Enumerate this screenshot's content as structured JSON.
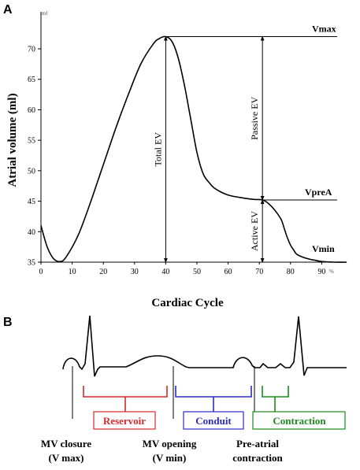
{
  "panel_a": {
    "letter": "A",
    "x_unit": "%",
    "y_unit": "ml",
    "annotations": {
      "vmax": "Vmax",
      "vprea": "VpreA",
      "vmin": "Vmin",
      "total_ev": "Total EV",
      "passive_ev": "Passive EV",
      "active_ev": "Active EV"
    }
  },
  "chart_data": {
    "type": "line",
    "xlabel": "Cardiac Cycle",
    "ylabel": "Atrial volume (ml)",
    "xlim": [
      0,
      100
    ],
    "ylim": [
      35,
      73
    ],
    "x_ticks": [
      "0",
      "10",
      "20",
      "30",
      "40",
      "50",
      "60",
      "70",
      "80",
      "90"
    ],
    "y_ticks": [
      "35",
      "40",
      "45",
      "50",
      "55",
      "60",
      "65",
      "70"
    ],
    "grid": false,
    "legend": "none",
    "series": [
      {
        "x": [
          0,
          2,
          4,
          6,
          8,
          12,
          16,
          20,
          24,
          28,
          32,
          36,
          38,
          40,
          42,
          44,
          46,
          48,
          50,
          52,
          54,
          56,
          60,
          64,
          68,
          71,
          73,
          75,
          77,
          78,
          79,
          80,
          81,
          82,
          84,
          86,
          88,
          90,
          94,
          98
        ],
        "values": [
          41,
          37.5,
          35.6,
          35.1,
          35.8,
          39.5,
          45,
          51,
          57,
          62.5,
          67.5,
          70.8,
          71.7,
          72,
          71.2,
          68.5,
          64,
          58.5,
          53,
          49.5,
          48,
          47,
          46,
          45.6,
          45.3,
          45.2,
          44.6,
          43.5,
          42,
          40.5,
          39,
          37.8,
          37,
          36.3,
          35.8,
          35.5,
          35.3,
          35.1,
          35,
          35
        ]
      }
    ],
    "levels": {
      "vmax": 72,
      "vprea": 45.2,
      "vmin": 35
    },
    "markers": {
      "total_ev_x": 40,
      "phase_x": 71
    }
  },
  "panel_b": {
    "letter": "B",
    "phases": {
      "reservoir": "Reservoir",
      "conduit": "Conduit",
      "contraction": "Contraction"
    },
    "events": {
      "mv_closure_1": "MV closure",
      "mv_closure_2": "(V max)",
      "mv_opening_1": "MV opening",
      "mv_opening_2": "(V min)",
      "pre_atrial_1": "Pre-atrial",
      "pre_atrial_2": "contraction"
    },
    "colors": {
      "reservoir": "#d42a2a",
      "conduit": "#2b2bc6",
      "contraction": "#1b8a1b"
    }
  }
}
